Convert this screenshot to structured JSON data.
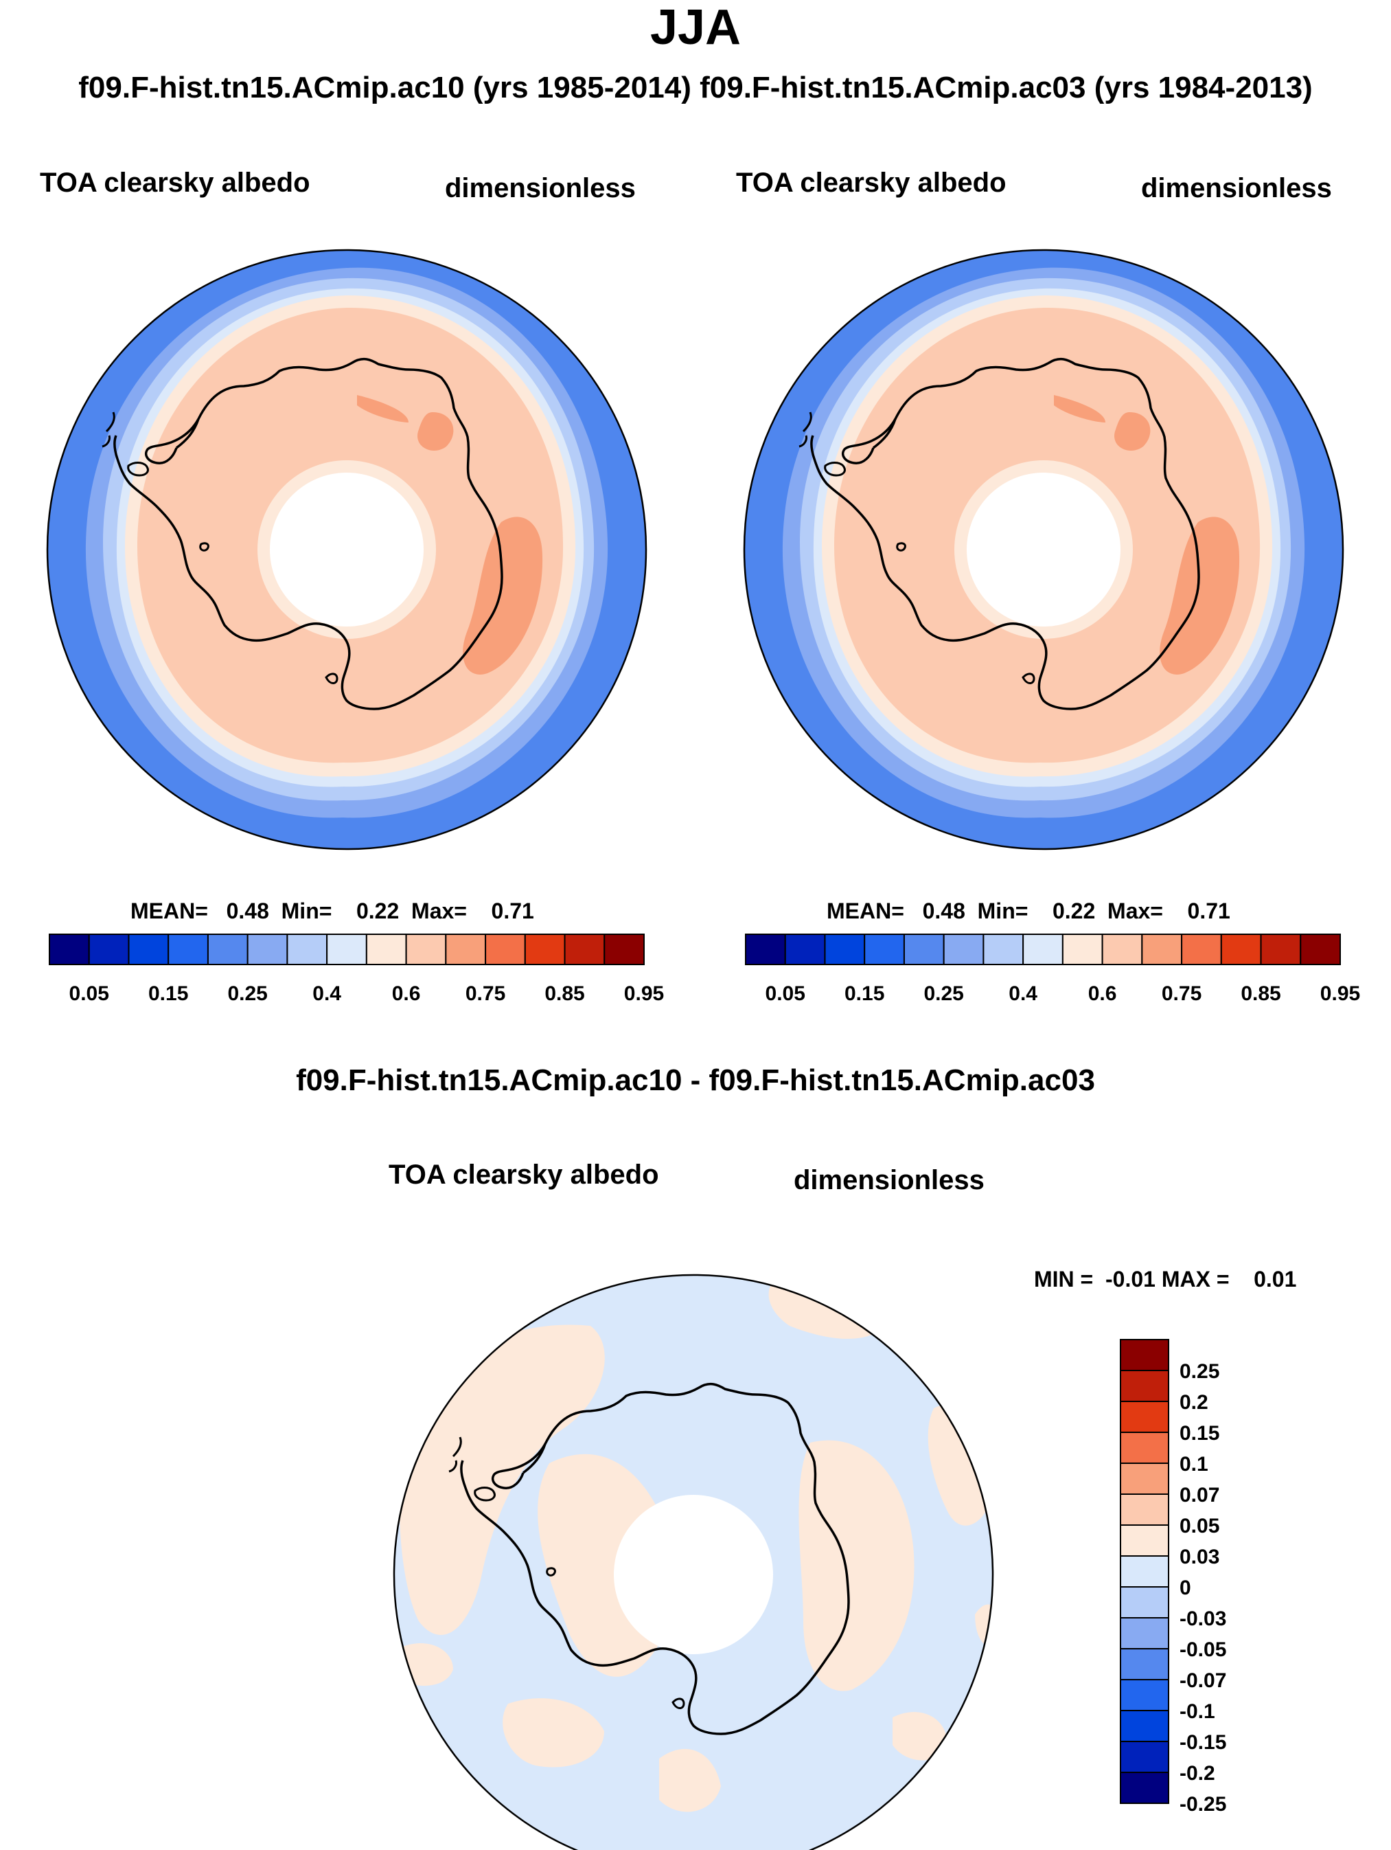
{
  "title": "JJA",
  "subtitle": "f09.F-hist.tn15.ACmip.ac10 (yrs 1985-2014)  f09.F-hist.tn15.ACmip.ac03 (yrs 1984-2013)",
  "panels": [
    {
      "variable": "TOA clearsky albedo",
      "units": "dimensionless",
      "stats": "MEAN=   0.48  Min=    0.22  Max=    0.71"
    },
    {
      "variable": "TOA clearsky albedo",
      "units": "dimensionless",
      "stats": "MEAN=   0.48  Min=    0.22  Max=    0.71"
    }
  ],
  "difference": {
    "title": "f09.F-hist.tn15.ACmip.ac10 - f09.F-hist.tn15.ACmip.ac03",
    "variable": "TOA clearsky albedo",
    "units": "dimensionless",
    "stats": "MIN =  -0.01 MAX =    0.01"
  },
  "colors": {
    "main_scale": [
      "#000080",
      "#0022bb",
      "#0044dd",
      "#2266ee",
      "#5588ee",
      "#88aaf2",
      "#b5cdf8",
      "#dce9fa",
      "#fde9da",
      "#fccab0",
      "#f8a07a",
      "#f37048",
      "#e23a12",
      "#c01f0a",
      "#8b0000"
    ],
    "diff_scale": [
      "#000080",
      "#0022bb",
      "#0044dd",
      "#2266ee",
      "#5588ee",
      "#88aaf2",
      "#b5cdf8",
      "#d9e8fb",
      "#fde9da",
      "#fccab0",
      "#f8a07a",
      "#f37048",
      "#e23a12",
      "#c01f0a",
      "#8b0000"
    ]
  },
  "chart_data": [
    {
      "type": "heatmap",
      "projection": "south polar stereographic",
      "title": "TOA clearsky albedo",
      "units": "dimensionless",
      "case": "f09.F-hist.tn15.ACmip.ac10 (yrs 1985-2014)",
      "season": "JJA",
      "mean": 0.48,
      "min": 0.22,
      "max": 0.71,
      "colorbar_levels": [
        0.05,
        0.1,
        0.15,
        0.2,
        0.25,
        0.3,
        0.4,
        0.5,
        0.6,
        0.65,
        0.75,
        0.8,
        0.85,
        0.9,
        0.95
      ],
      "colorbar_tick_labels": [
        "0.05",
        "0.15",
        "0.25",
        "0.4",
        "0.6",
        "0.75",
        "0.85",
        "0.95"
      ]
    },
    {
      "type": "heatmap",
      "projection": "south polar stereographic",
      "title": "TOA clearsky albedo",
      "units": "dimensionless",
      "case": "f09.F-hist.tn15.ACmip.ac03 (yrs 1984-2013)",
      "season": "JJA",
      "mean": 0.48,
      "min": 0.22,
      "max": 0.71,
      "colorbar_levels": [
        0.05,
        0.1,
        0.15,
        0.2,
        0.25,
        0.3,
        0.4,
        0.5,
        0.6,
        0.65,
        0.75,
        0.8,
        0.85,
        0.9,
        0.95
      ],
      "colorbar_tick_labels": [
        "0.05",
        "0.15",
        "0.25",
        "0.4",
        "0.6",
        "0.75",
        "0.85",
        "0.95"
      ]
    },
    {
      "type": "heatmap",
      "projection": "south polar stereographic",
      "title": "f09.F-hist.tn15.ACmip.ac10 - f09.F-hist.tn15.ACmip.ac03",
      "units": "dimensionless",
      "min": -0.01,
      "max": 0.01,
      "colorbar_levels": [
        -0.25,
        -0.2,
        -0.15,
        -0.1,
        -0.07,
        -0.05,
        -0.03,
        0,
        0.03,
        0.05,
        0.07,
        0.1,
        0.15,
        0.2,
        0.25
      ],
      "colorbar_tick_labels": [
        "0.25",
        "0.2",
        "0.15",
        "0.1",
        "0.07",
        "0.05",
        "0.03",
        "0",
        "-0.03",
        "-0.05",
        "-0.07",
        "-0.1",
        "-0.15",
        "-0.2",
        "-0.25"
      ]
    }
  ]
}
